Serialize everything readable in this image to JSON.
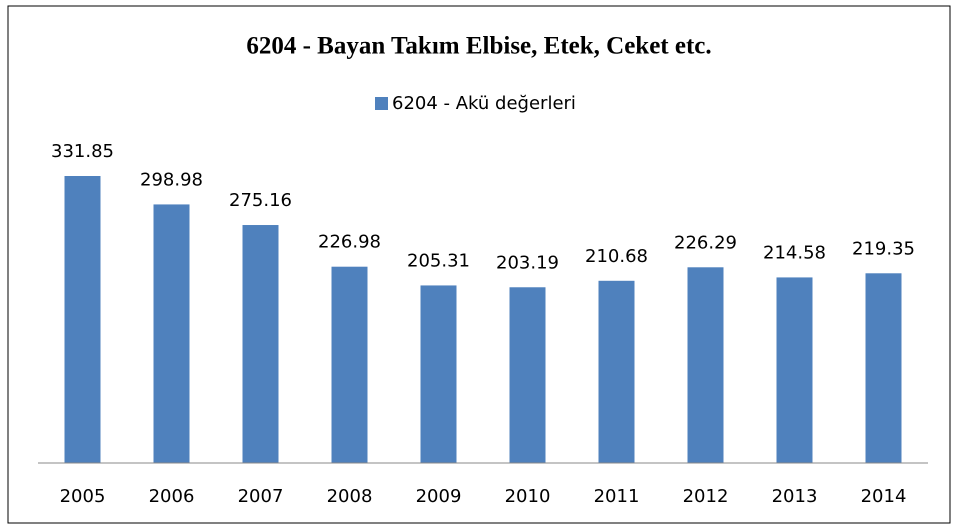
{
  "chart_data": {
    "type": "bar",
    "title": "6204 - Bayan Takım Elbise, Etek, Ceket etc.",
    "categories": [
      "2005",
      "2006",
      "2007",
      "2008",
      "2009",
      "2010",
      "2011",
      "2012",
      "2013",
      "2014"
    ],
    "series": [
      {
        "name": "6204 - Akü değerleri",
        "color": "#4f81bd",
        "values": [
          331.85,
          298.98,
          275.16,
          226.98,
          205.31,
          203.19,
          210.68,
          226.29,
          214.58,
          219.35
        ]
      }
    ],
    "legend": "top"
  }
}
